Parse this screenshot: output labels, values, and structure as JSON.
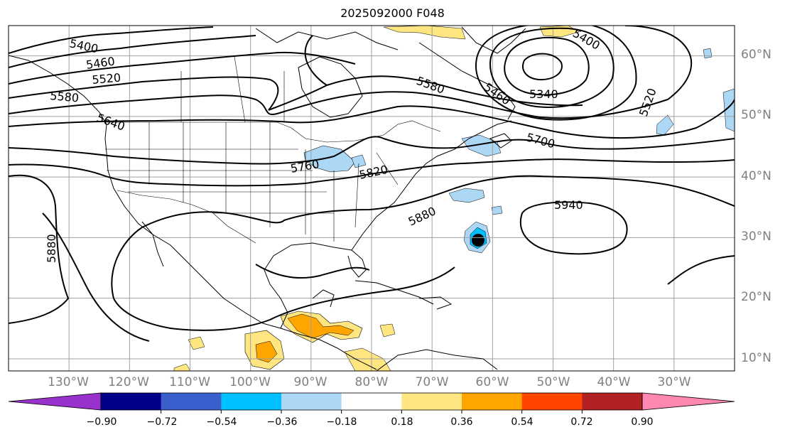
{
  "title": "2025092000 F048",
  "colors": {
    "contour": "#000000",
    "coast": "#000000",
    "grid": "#a0a0a0",
    "axis_label": "#808080"
  },
  "map": {
    "projection": "equirectangular",
    "lon_range": [
      -140,
      -20
    ],
    "lat_range": [
      8,
      65
    ],
    "grid_lons": [
      -130,
      -120,
      -110,
      -100,
      -90,
      -80,
      -70,
      -60,
      -50,
      -40,
      -30
    ],
    "grid_lats": [
      10,
      20,
      30,
      40,
      50,
      60
    ],
    "lon_labels": [
      "130°W",
      "120°W",
      "110°W",
      "100°W",
      "90°W",
      "80°W",
      "70°W",
      "60°W",
      "50°W",
      "40°W",
      "30°W"
    ],
    "lat_labels": [
      "10°N",
      "20°N",
      "30°N",
      "40°N",
      "50°N",
      "60°N"
    ],
    "height_contour_labels": [
      "5400",
      "5460",
      "5520",
      "5580",
      "5640",
      "5580",
      "5340",
      "5460",
      "5400",
      "5700",
      "5520",
      "5760",
      "5820",
      "5880",
      "5940",
      "5880"
    ]
  },
  "colorbar": {
    "tick_labels": [
      "−0.90",
      "−0.72",
      "−0.54",
      "−0.36",
      "−0.18",
      "0.18",
      "0.36",
      "0.54",
      "0.72",
      "0.90"
    ],
    "tick_values": [
      -0.9,
      -0.72,
      -0.54,
      -0.36,
      -0.18,
      0.18,
      0.36,
      0.54,
      0.72,
      0.9
    ],
    "colors": [
      "#9932cc",
      "#00008b",
      "#3a5fcd",
      "#00bfff",
      "#add8f5",
      "#ffffff",
      "#ffe680",
      "#ffa500",
      "#ff4500",
      "#b22222",
      "#ff88b0"
    ],
    "extend": "both"
  }
}
